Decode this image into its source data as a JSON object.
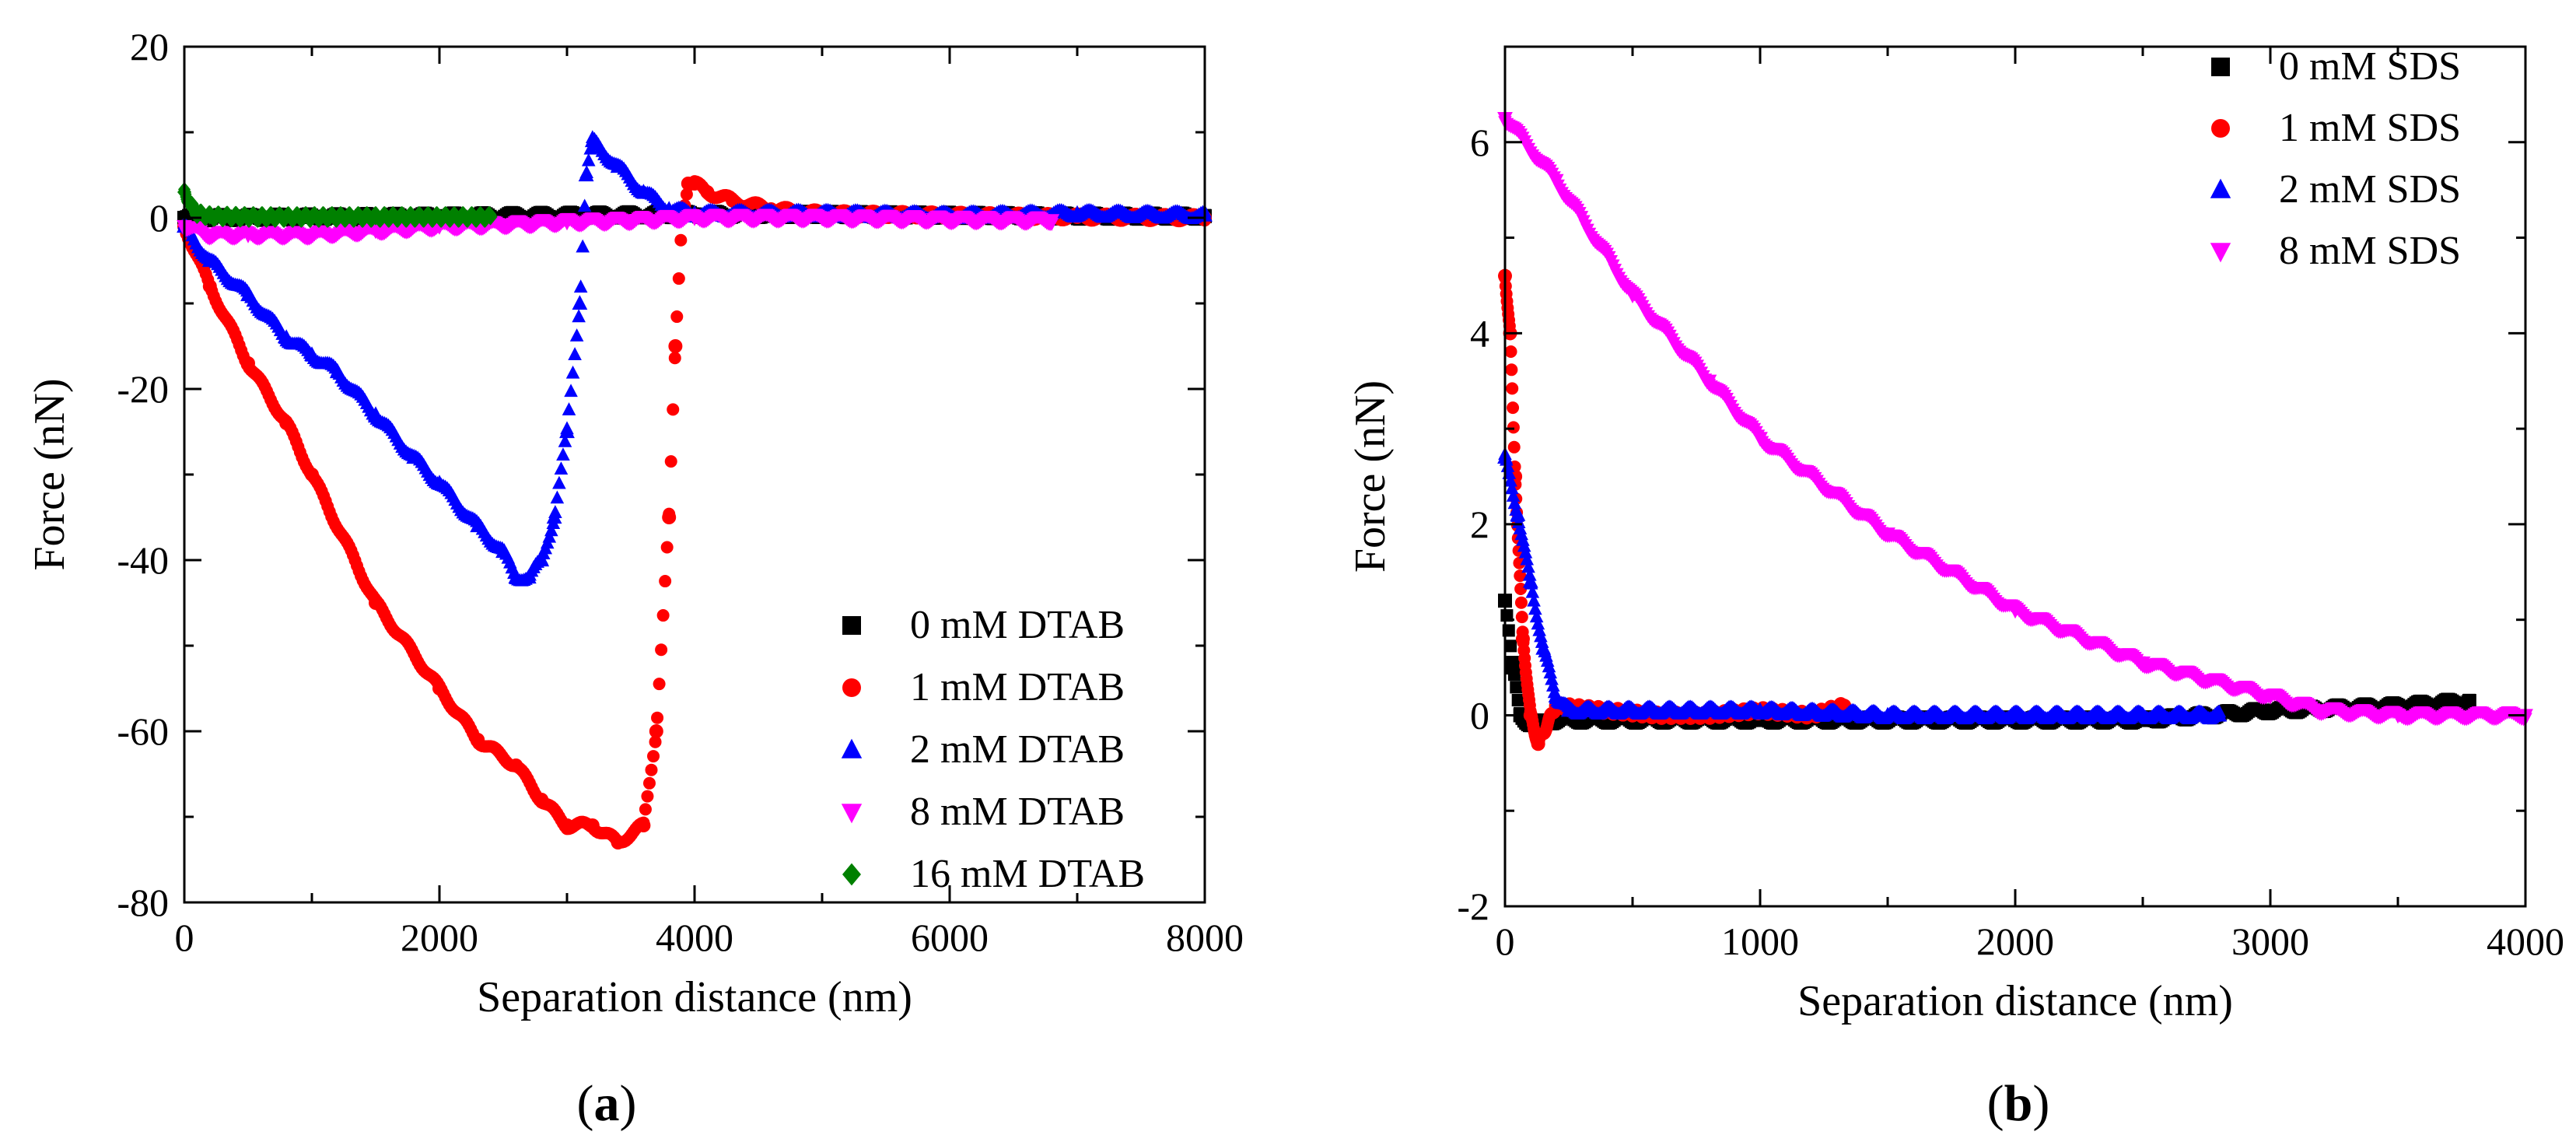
{
  "chart_data": [
    {
      "type": "scatter",
      "panel_label": "a",
      "title": "",
      "xlabel": "Separation distance (nm)",
      "ylabel": "Force (nN)",
      "xlim": [
        0,
        8000
      ],
      "ylim": [
        -80,
        20
      ],
      "xticks": [
        0,
        2000,
        4000,
        6000,
        8000
      ],
      "yticks": [
        -80,
        -60,
        -40,
        -20,
        0,
        20
      ],
      "legend_position": "bottom-right",
      "series": [
        {
          "name": "0 mM DTAB",
          "marker": "square",
          "color": "#000000",
          "x": [
            0,
            1000,
            2000,
            3000,
            4000,
            5000,
            6000,
            7000,
            8000
          ],
          "y": [
            0,
            0.1,
            0.2,
            0.3,
            0.4,
            0.4,
            0.3,
            0.2,
            0.2
          ]
        },
        {
          "name": "1 mM DTAB",
          "marker": "circle",
          "color": "#ff0000",
          "x": [
            0,
            200,
            500,
            800,
            1000,
            1500,
            2000,
            2300,
            2600,
            2800,
            3000,
            3200,
            3400,
            3600,
            3700,
            3800,
            3850,
            3900,
            3950,
            4000,
            4100,
            4300,
            4600,
            5000,
            6000,
            7000,
            8000
          ],
          "y": [
            -1,
            -8,
            -17,
            -24,
            -30,
            -45,
            -55,
            -61,
            -64,
            -68,
            -71,
            -71,
            -73,
            -71,
            -60,
            -35,
            -15,
            0,
            4,
            4,
            3,
            2,
            1,
            0.5,
            0.3,
            0.1,
            0
          ]
        },
        {
          "name": "2 mM DTAB",
          "marker": "triangle-up",
          "color": "#0000ff",
          "x": [
            0,
            200,
            500,
            800,
            1000,
            1200,
            1500,
            1800,
            2000,
            2300,
            2500,
            2600,
            2700,
            2800,
            2900,
            3000,
            3100,
            3150,
            3200,
            3400,
            3600,
            3800,
            4000,
            5000,
            6000,
            7000,
            8000
          ],
          "y": [
            -1,
            -5,
            -9,
            -14,
            -16,
            -18,
            -23,
            -28,
            -31,
            -36,
            -39,
            -42,
            -42,
            -40,
            -35,
            -25,
            -10,
            5,
            9,
            6,
            3,
            1,
            0.5,
            0.5,
            0.3,
            0.5,
            0.3
          ]
        },
        {
          "name": "8 mM DTAB",
          "marker": "triangle-down",
          "color": "#ff00ff",
          "x": [
            0,
            200,
            500,
            1000,
            1500,
            2000,
            2500,
            3000,
            3500,
            4000,
            5000,
            6000,
            6800
          ],
          "y": [
            -1,
            -2,
            -2,
            -2,
            -1.5,
            -1,
            -0.8,
            -0.5,
            -0.3,
            0,
            0,
            -0.2,
            -0.3
          ]
        },
        {
          "name": "16 mM DTAB",
          "marker": "diamond",
          "color": "#008000",
          "x": [
            0,
            50,
            100,
            200,
            500,
            1000,
            1500,
            2000,
            2400
          ],
          "y": [
            3,
            1.5,
            0.5,
            0.2,
            0.1,
            0.1,
            0.1,
            0.1,
            0.1
          ]
        }
      ]
    },
    {
      "type": "scatter",
      "panel_label": "b",
      "title": "",
      "xlabel": "Separation distance (nm)",
      "ylabel": "Force (nN)",
      "xlim": [
        0,
        4000
      ],
      "ylim": [
        -2,
        7
      ],
      "xticks": [
        0,
        1000,
        2000,
        3000,
        4000
      ],
      "yticks": [
        -2,
        0,
        2,
        4,
        6
      ],
      "legend_position": "top-right",
      "series": [
        {
          "name": "0 mM SDS",
          "marker": "square",
          "color": "#000000",
          "x": [
            0,
            30,
            60,
            100,
            200,
            500,
            1000,
            1500,
            2000,
            2500,
            3000,
            3500,
            3780
          ],
          "y": [
            1.2,
            0.5,
            0.0,
            -0.1,
            -0.05,
            -0.05,
            -0.05,
            -0.05,
            -0.05,
            -0.05,
            0.05,
            0.1,
            0.15
          ]
        },
        {
          "name": "1 mM SDS",
          "marker": "circle",
          "color": "#ff0000",
          "x": [
            0,
            20,
            40,
            70,
            100,
            130,
            200,
            400,
            600,
            800,
            1000,
            1200,
            1330
          ],
          "y": [
            4.6,
            4.0,
            2.5,
            0.8,
            0.0,
            -0.3,
            0.1,
            0.05,
            0.0,
            0.0,
            0.05,
            0.0,
            0.1
          ]
        },
        {
          "name": "2 mM SDS",
          "marker": "triangle-up",
          "color": "#0000ff",
          "x": [
            0,
            50,
            100,
            150,
            200,
            250,
            500,
            1000,
            1500,
            2000,
            2500,
            2800
          ],
          "y": [
            2.7,
            2.1,
            1.4,
            0.7,
            0.2,
            0.05,
            0.05,
            0.05,
            0.0,
            0.0,
            0.0,
            0.0
          ]
        },
        {
          "name": "8 mM SDS",
          "marker": "triangle-down",
          "color": "#ff00ff",
          "x": [
            0,
            200,
            500,
            800,
            1000,
            1500,
            2000,
            2500,
            3000,
            3200,
            3500,
            4000
          ],
          "y": [
            6.25,
            5.6,
            4.4,
            3.5,
            2.9,
            1.9,
            1.1,
            0.55,
            0.2,
            0.05,
            0.0,
            0.0
          ]
        }
      ]
    }
  ]
}
